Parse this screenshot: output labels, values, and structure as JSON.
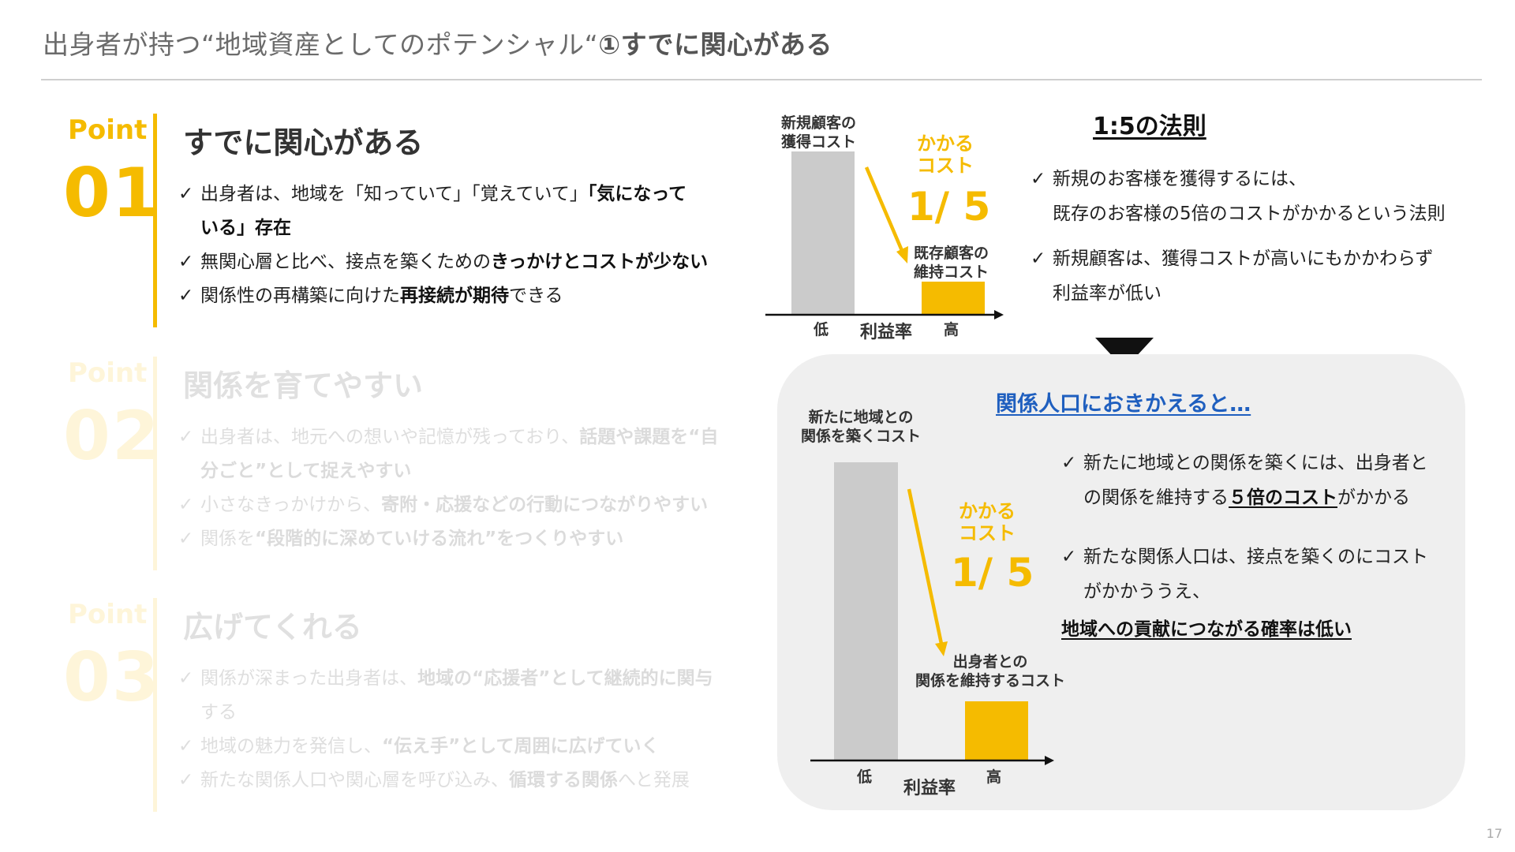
{
  "slide": {
    "title_plain": "出身者が持つ“地域資産としてのポテンシャル“",
    "title_bold": "①すでに関心がある",
    "page_number": "17"
  },
  "points": [
    {
      "label": "Point",
      "number": "01",
      "heading": "すでに関心がある",
      "bullets": [
        {
          "check": "✓",
          "parts": [
            "出身者は、地域を「知っていて」「覚えていて」",
            "「気になって"
          ],
          "cont": "いる」存在"
        },
        {
          "check": "✓",
          "parts": [
            "無関心層と比べ、接点を築くための",
            "きっかけとコストが少ない"
          ]
        },
        {
          "check": "✓",
          "parts": [
            "関係性の再構築に向けた",
            "再接続が期待",
            "できる"
          ]
        }
      ]
    },
    {
      "label": "Point",
      "number": "02",
      "heading": "関係を育てやすい",
      "bullets": [
        {
          "check": "✓",
          "parts": [
            "出身者は、地元への想いや記憶が残っており、",
            "話題や課題を“自"
          ],
          "cont": "分ごと”として捉えやすい"
        },
        {
          "check": "✓",
          "parts": [
            "小さなきっかけから、",
            "寄附・応援などの行動につながりやすい"
          ]
        },
        {
          "check": "✓",
          "parts": [
            "関係を",
            "“段階的に深めていける流れ”をつくりやすい"
          ]
        }
      ]
    },
    {
      "label": "Point",
      "number": "03",
      "heading": "広げてくれる",
      "bullets": [
        {
          "check": "✓",
          "parts": [
            "関係が深まった出身者は、",
            "地域の“応援者”として継続的に関与"
          ],
          "cont": "する"
        },
        {
          "check": "✓",
          "parts": [
            "地域の魅力を発信し、",
            "“伝え手”として周囲に広げていく"
          ]
        },
        {
          "check": "✓",
          "parts": [
            "新たな関係人口や関心層を呼び込み、",
            "循環する関係",
            "へと発展"
          ]
        }
      ]
    }
  ],
  "top_chart": {
    "label_new_line1": "新規顧客の",
    "label_new_line2": "獲得コスト",
    "label_existing_line1": "既存顧客の",
    "label_existing_line2": "維持コスト",
    "cost_line1": "かかる",
    "cost_line2": "コスト",
    "ratio": "1/ 5",
    "x_low": "低",
    "x_high": "高",
    "x_axis": "利益率"
  },
  "rule_block": {
    "title": "1:5の法則",
    "bullets": [
      {
        "check": "✓",
        "line1": "新規のお客様を獲得するには、",
        "line2": "既存のお客様の5倍のコストがかかるという法則"
      },
      {
        "check": "✓",
        "line1": "新規顧客は、獲得コストが高いにもかかわらず",
        "line2": "利益率が低い"
      }
    ]
  },
  "panel": {
    "title": "関係人口におきかえると…",
    "chart": {
      "label_new_line1": "新たに地域との",
      "label_new_line2": "関係を築くコスト",
      "label_alumni_line1": "出身者との",
      "label_alumni_line2": "関係を維持するコスト",
      "cost_line1": "かかる",
      "cost_line2": "コスト",
      "ratio": "1/ 5",
      "x_low": "低",
      "x_high": "高",
      "x_axis": "利益率"
    },
    "bullet1": {
      "check": "✓",
      "line1": "新たに地域との関係を築くには、出身者と",
      "line2_pre": "の関係を維持する",
      "line2_bold": "５倍のコスト",
      "line2_post": "がかかる"
    },
    "bullet2": {
      "check": "✓",
      "line1": "新たな関係人口は、接点を築くのにコスト",
      "line2": "がかかううえ、",
      "line3": "地域への貢献につながる確率は低い"
    }
  },
  "colors": {
    "accent_yellow": "#f5bb00",
    "bar_gray": "#cbcbcb",
    "link_blue": "#1f5fbf",
    "panel_bg": "#efefef"
  }
}
